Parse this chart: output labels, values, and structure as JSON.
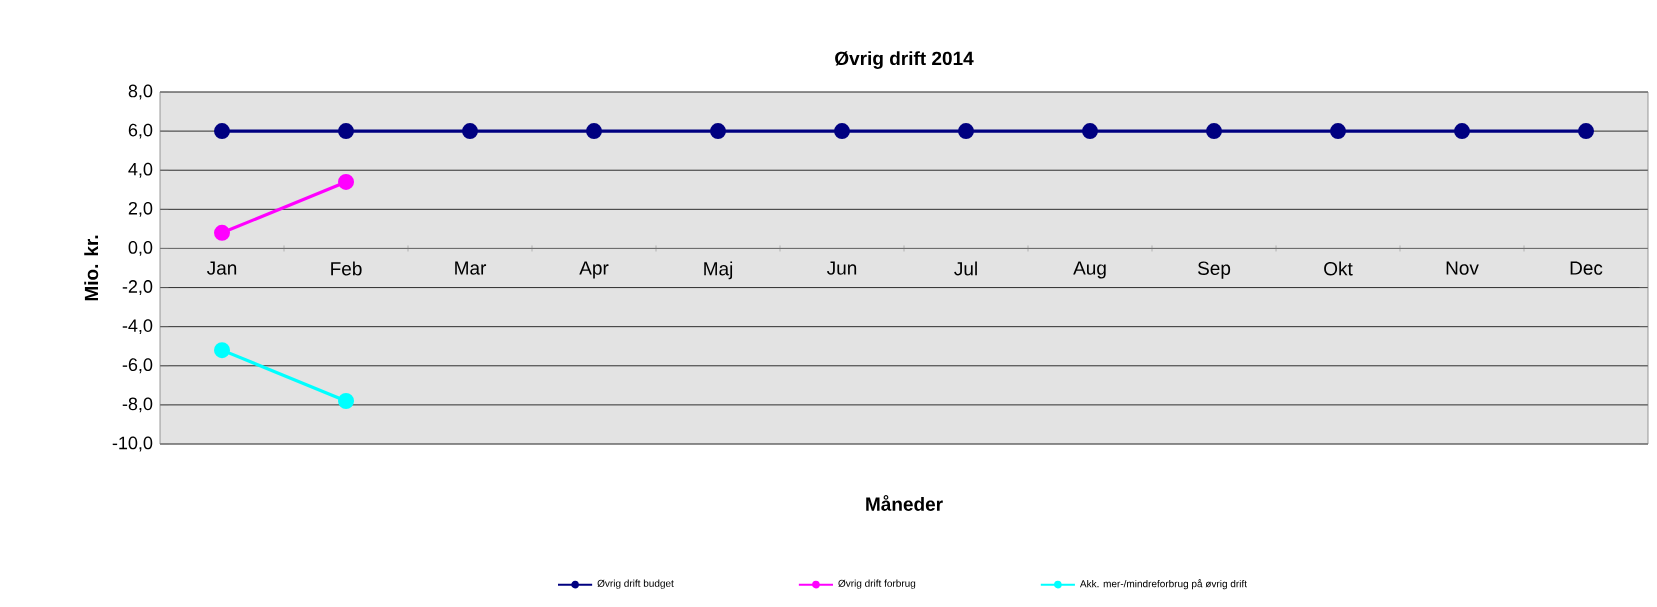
{
  "chart_data": {
    "type": "line",
    "title": "Øvrig drift 2014",
    "xlabel": "Måneder",
    "ylabel": "Mio. kr.",
    "categories": [
      "Jan",
      "Feb",
      "Mar",
      "Apr",
      "Maj",
      "Jun",
      "Jul",
      "Aug",
      "Sep",
      "Okt",
      "Nov",
      "Dec"
    ],
    "series": [
      {
        "name": "Øvrig drift budget",
        "color": "#000080",
        "values": [
          6,
          6,
          6,
          6,
          6,
          6,
          6,
          6,
          6,
          6,
          6,
          6
        ]
      },
      {
        "name": "Øvrig drift forbrug",
        "color": "#ff00ff",
        "values": [
          0.8,
          3.4,
          null,
          null,
          null,
          null,
          null,
          null,
          null,
          null,
          null,
          null
        ]
      },
      {
        "name": "Akk. mer-/mindreforbrug på øvrig drift",
        "color": "#00ffff",
        "values": [
          -5.2,
          -7.8,
          null,
          null,
          null,
          null,
          null,
          null,
          null,
          null,
          null,
          null
        ]
      }
    ],
    "ylim": [
      -10,
      8
    ],
    "yticks": [
      {
        "value": -10,
        "label": "-10,0"
      },
      {
        "value": -8,
        "label": "-8,0"
      },
      {
        "value": -6,
        "label": "-6,0"
      },
      {
        "value": -4,
        "label": "-4,0"
      },
      {
        "value": -2,
        "label": "-2,0"
      },
      {
        "value": 0,
        "label": "0,0"
      },
      {
        "value": 2,
        "label": "2,0"
      },
      {
        "value": 4,
        "label": "4,0"
      },
      {
        "value": 6,
        "label": "6,0"
      },
      {
        "value": 8,
        "label": "8,0"
      }
    ],
    "grid": "y",
    "legend": "bottom",
    "marker": "circle",
    "line_style": "solid"
  }
}
